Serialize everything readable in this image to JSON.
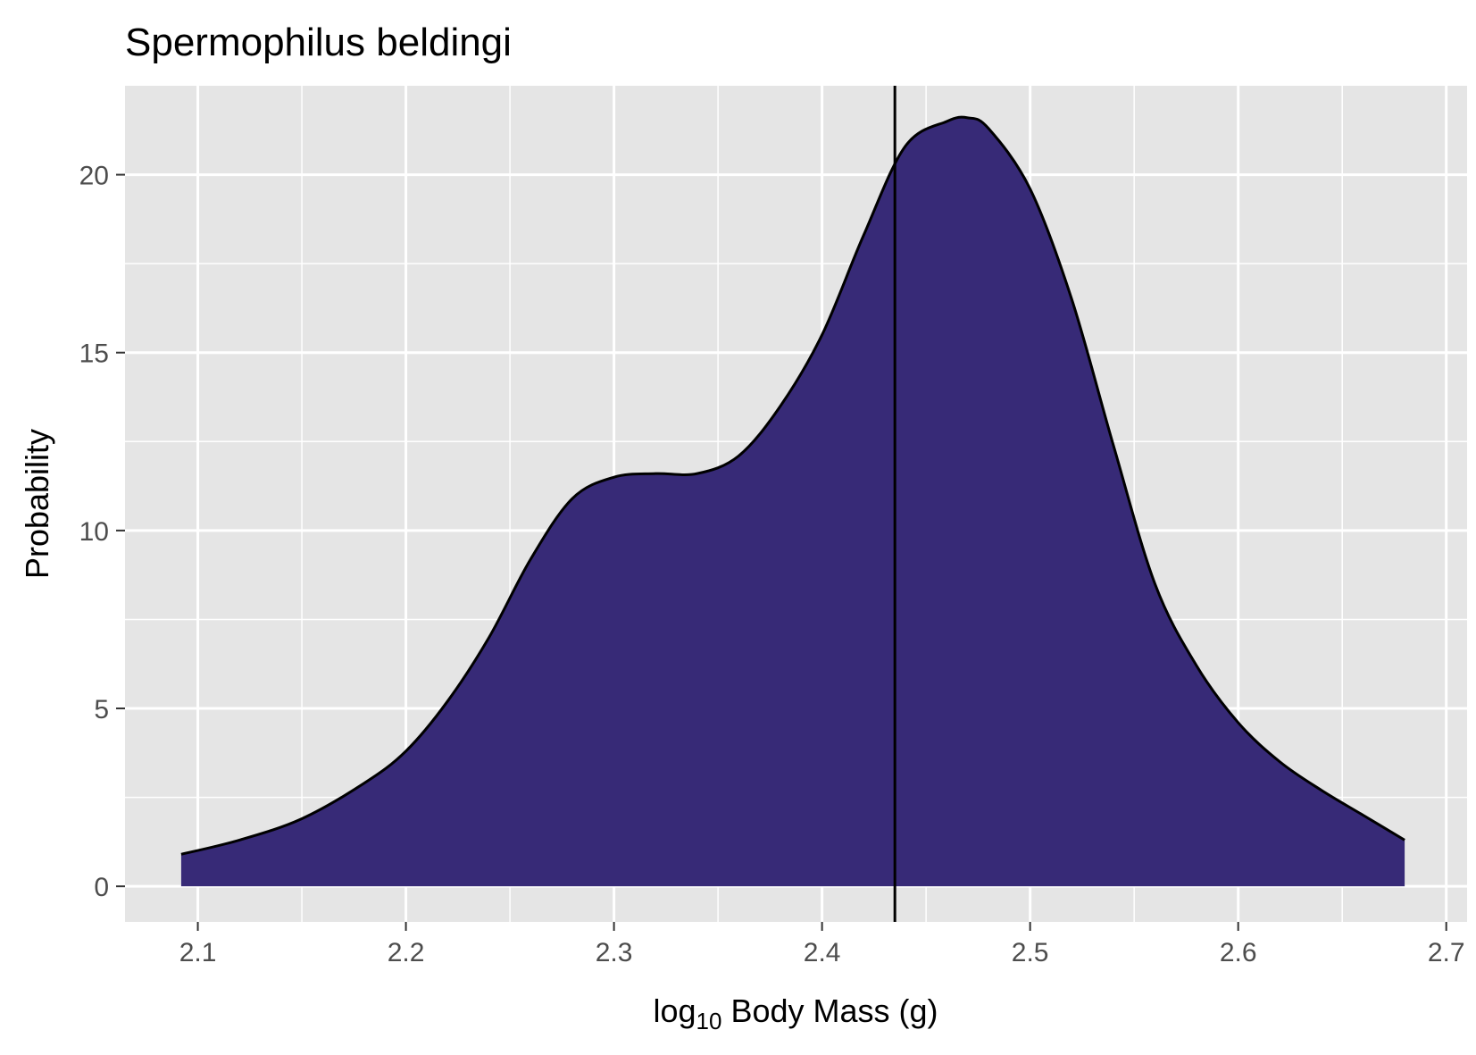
{
  "chart_data": {
    "type": "area",
    "title": "Spermophilus beldingi",
    "xlabel": {
      "prefix": "log",
      "subscript": "10",
      "suffix": " Body Mass (g)"
    },
    "ylabel": "Probability",
    "xlim": [
      2.065,
      2.71
    ],
    "ylim": [
      -1.0,
      22.5
    ],
    "x_ticks": [
      2.1,
      2.2,
      2.3,
      2.4,
      2.5,
      2.6,
      2.7
    ],
    "x_tick_labels": [
      "2.1",
      "2.2",
      "2.3",
      "2.4",
      "2.5",
      "2.6",
      "2.7"
    ],
    "y_ticks": [
      0,
      5,
      10,
      15,
      20
    ],
    "y_tick_labels": [
      "0",
      "5",
      "10",
      "15",
      "20"
    ],
    "grid": true,
    "vline_x": 2.435,
    "fill_color": "#372a77",
    "panel_color": "#e5e5e5",
    "series": [
      {
        "x": [
          2.092,
          2.12,
          2.15,
          2.18,
          2.2,
          2.22,
          2.24,
          2.26,
          2.28,
          2.3,
          2.32,
          2.34,
          2.36,
          2.38,
          2.4,
          2.42,
          2.44,
          2.46,
          2.47,
          2.48,
          2.5,
          2.52,
          2.54,
          2.56,
          2.58,
          2.6,
          2.62,
          2.64,
          2.66,
          2.68
        ],
        "y": [
          0.9,
          1.3,
          1.9,
          2.9,
          3.8,
          5.2,
          7.0,
          9.2,
          10.9,
          11.5,
          11.6,
          11.6,
          12.1,
          13.5,
          15.5,
          18.3,
          20.8,
          21.5,
          21.6,
          21.3,
          19.6,
          16.5,
          12.4,
          8.5,
          6.2,
          4.6,
          3.5,
          2.7,
          2.0,
          1.3
        ]
      }
    ]
  }
}
